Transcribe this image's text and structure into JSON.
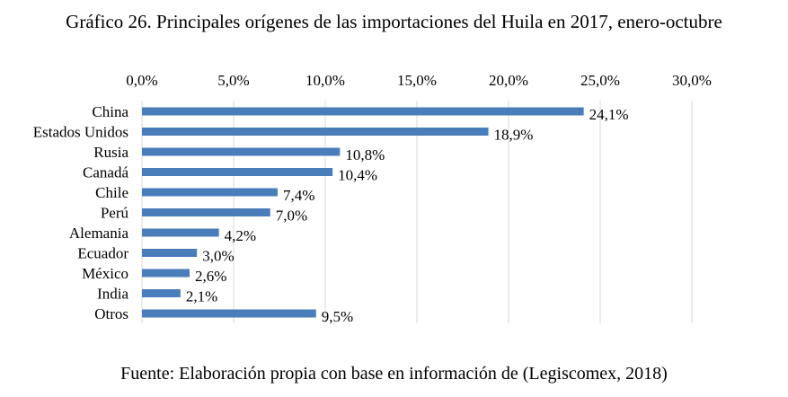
{
  "chart_data": {
    "type": "bar",
    "orientation": "horizontal",
    "title": "Gráfico 26. Principales orígenes de las importaciones del Huila en 2017, enero-octubre",
    "categories": [
      "China",
      "Estados Unidos",
      "Rusia",
      "Canadá",
      "Chile",
      "Perú",
      "Alemania",
      "Ecuador",
      "México",
      "India",
      "Otros"
    ],
    "values": [
      24.1,
      18.9,
      10.8,
      10.4,
      7.4,
      7.0,
      4.2,
      3.0,
      2.6,
      2.1,
      9.5
    ],
    "data_labels": [
      "24,1%",
      "18,9%",
      "10,8%",
      "10,4%",
      "7,4%",
      "7,0%",
      "4,2%",
      "3,0%",
      "2,6%",
      "2,1%",
      "9,5%"
    ],
    "xlim": [
      0,
      30
    ],
    "xticks": [
      0,
      5,
      10,
      15,
      20,
      25,
      30
    ],
    "xtick_labels": [
      "0,0%",
      "5,0%",
      "10,0%",
      "15,0%",
      "20,0%",
      "25,0%",
      "30,0%"
    ],
    "xaxis_position": "top",
    "grid": true,
    "legend": "none",
    "bar_color": "#4a7ebb",
    "grid_color": "#d9d9d9",
    "source": "Fuente: Elaboración propia con base en información de (Legiscomex, 2018)"
  }
}
